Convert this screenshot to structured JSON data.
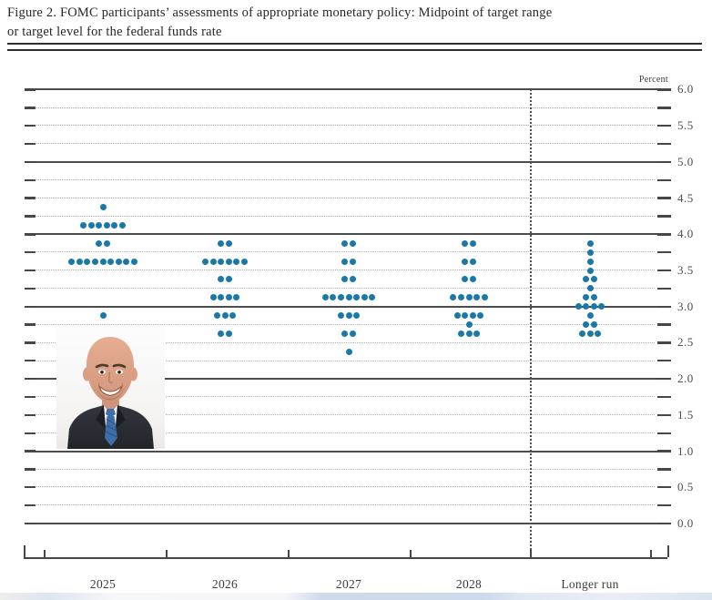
{
  "title": {
    "line1": "Figure 2. FOMC participants’ assessments of appropriate monetary policy: Midpoint of target range",
    "line2": "or target level for the federal funds rate"
  },
  "chart_data": {
    "type": "scatter",
    "subtype": "fomc-dot-plot",
    "unit_label": "Percent",
    "ylabel": "Percent",
    "xlabel": "",
    "ylim": [
      0.0,
      6.0
    ],
    "gridline_step": 0.25,
    "y_tick_labels": [
      "6.0",
      "5.5",
      "5.0",
      "4.5",
      "4.0",
      "3.5",
      "3.0",
      "2.5",
      "2.0",
      "1.5",
      "1.0",
      "0.5",
      "0.0"
    ],
    "grid": "on",
    "legend": "none",
    "separator_before_category": "Longer run",
    "dot_color": "#1a78a8",
    "categories": [
      "2025",
      "2026",
      "2027",
      "2028",
      "Longer run"
    ],
    "series": [
      {
        "category": "2025",
        "dots": [
          {
            "rate": 4.375,
            "count": 1
          },
          {
            "rate": 4.125,
            "count": 6
          },
          {
            "rate": 3.875,
            "count": 2
          },
          {
            "rate": 3.625,
            "count": 9
          },
          {
            "rate": 2.875,
            "count": 1
          }
        ]
      },
      {
        "category": "2026",
        "dots": [
          {
            "rate": 3.875,
            "count": 2
          },
          {
            "rate": 3.625,
            "count": 6
          },
          {
            "rate": 3.375,
            "count": 2
          },
          {
            "rate": 3.125,
            "count": 4
          },
          {
            "rate": 2.875,
            "count": 3
          },
          {
            "rate": 2.625,
            "count": 2
          }
        ]
      },
      {
        "category": "2027",
        "dots": [
          {
            "rate": 3.875,
            "count": 2
          },
          {
            "rate": 3.625,
            "count": 2
          },
          {
            "rate": 3.375,
            "count": 2
          },
          {
            "rate": 3.125,
            "count": 7
          },
          {
            "rate": 2.875,
            "count": 3
          },
          {
            "rate": 2.625,
            "count": 2
          },
          {
            "rate": 2.375,
            "count": 1
          }
        ]
      },
      {
        "category": "2028",
        "dots": [
          {
            "rate": 3.875,
            "count": 2
          },
          {
            "rate": 3.625,
            "count": 2
          },
          {
            "rate": 3.375,
            "count": 2
          },
          {
            "rate": 3.125,
            "count": 5
          },
          {
            "rate": 2.875,
            "count": 4
          },
          {
            "rate": 2.75,
            "count": 1
          },
          {
            "rate": 2.625,
            "count": 3
          }
        ]
      },
      {
        "category": "Longer run",
        "dots": [
          {
            "rate": 3.875,
            "count": 1
          },
          {
            "rate": 3.75,
            "count": 1
          },
          {
            "rate": 3.625,
            "count": 1
          },
          {
            "rate": 3.5,
            "count": 1
          },
          {
            "rate": 3.375,
            "count": 2
          },
          {
            "rate": 3.25,
            "count": 1
          },
          {
            "rate": 3.125,
            "count": 2
          },
          {
            "rate": 3.0,
            "count": 4
          },
          {
            "rate": 2.875,
            "count": 1
          },
          {
            "rate": 2.75,
            "count": 2
          },
          {
            "rate": 2.625,
            "count": 3
          }
        ]
      }
    ]
  }
}
